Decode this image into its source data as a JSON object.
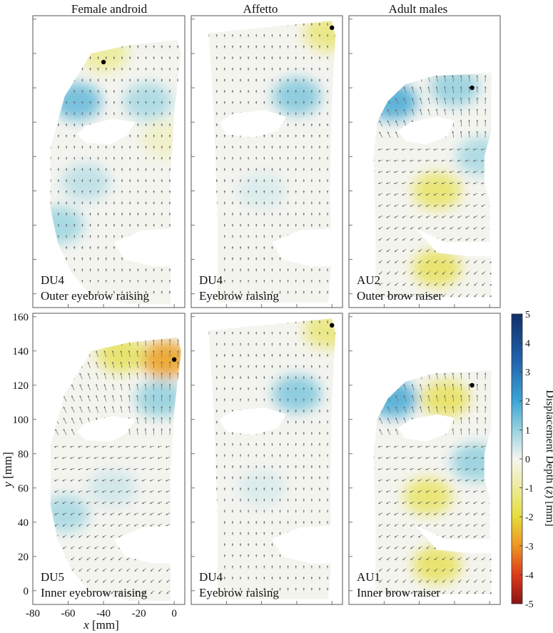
{
  "chart_data": {
    "type": "heatmap",
    "column_titles": [
      "Female android",
      "Affetto",
      "Adult males"
    ],
    "x_axis": {
      "label_italic": "x",
      "label_unit": "[mm]",
      "ticks": [
        -80,
        -60,
        -40,
        -20,
        0
      ],
      "tick_labels": [
        "-80",
        "-60",
        "-40",
        "-20",
        "0"
      ],
      "range": [
        -80,
        6
      ]
    },
    "y_axis": {
      "label_italic": "y",
      "label_unit": "[mm]",
      "ticks": [
        0,
        20,
        40,
        60,
        80,
        100,
        120,
        140,
        160
      ],
      "tick_labels": [
        "0",
        "20",
        "40",
        "60",
        "80",
        "100",
        "120",
        "140",
        "160"
      ],
      "range": [
        -8,
        162
      ]
    },
    "colorbar": {
      "label_parts": [
        "Displacement Depth (",
        "z",
        ") [mm]"
      ],
      "range": [
        -5,
        5
      ],
      "ticks": [
        5,
        4,
        3,
        2,
        1,
        0,
        -1,
        -2,
        -3,
        -4,
        -5
      ],
      "tick_labels": [
        "5",
        "4",
        "3",
        "2",
        "1",
        "0",
        "-1",
        "-2",
        "-3",
        "-4",
        "-5"
      ],
      "colormap": [
        {
          "v": 5,
          "color": "#10306a"
        },
        {
          "v": 3.5,
          "color": "#1f5fa9"
        },
        {
          "v": 2,
          "color": "#3da4d4"
        },
        {
          "v": 1,
          "color": "#96d2df"
        },
        {
          "v": 0,
          "color": "#f5f5f2"
        },
        {
          "v": -1,
          "color": "#ecec9a"
        },
        {
          "v": -2,
          "color": "#e6dc3c"
        },
        {
          "v": -3,
          "color": "#ee9524"
        },
        {
          "v": -4,
          "color": "#dc3a1b"
        },
        {
          "v": -5,
          "color": "#8a1414"
        }
      ]
    },
    "panels": [
      {
        "subject": "Female android",
        "code": "DU4",
        "description": "Outer eyebrow raising",
        "marker": {
          "x": -40,
          "y": 135
        },
        "regions": [
          {
            "x": -40,
            "y": 140,
            "depth": -1.0
          },
          {
            "x": -55,
            "y": 112,
            "depth": 1.5
          },
          {
            "x": -15,
            "y": 112,
            "depth": 0.8
          },
          {
            "x": -50,
            "y": 65,
            "depth": 0.6
          },
          {
            "x": -65,
            "y": 40,
            "depth": 0.9
          },
          {
            "x": -5,
            "y": 90,
            "depth": -0.5
          }
        ]
      },
      {
        "subject": "Affetto",
        "code": "DU4",
        "description": "Eyebrow raising",
        "marker": {
          "x": 0,
          "y": 155
        },
        "regions": [
          {
            "x": -2,
            "y": 152,
            "depth": -1.3
          },
          {
            "x": -20,
            "y": 115,
            "depth": 1.2
          },
          {
            "x": -40,
            "y": 60,
            "depth": 0.3
          }
        ]
      },
      {
        "subject": "Adult males",
        "code": "AU2",
        "description": "Outer brow raiser",
        "marker": {
          "x": -10,
          "y": 120
        },
        "regions": [
          {
            "x": -55,
            "y": 112,
            "depth": 1.8
          },
          {
            "x": -20,
            "y": 120,
            "depth": 1.0
          },
          {
            "x": -30,
            "y": 60,
            "depth": -1.5
          },
          {
            "x": -30,
            "y": 15,
            "depth": -1.6
          },
          {
            "x": -5,
            "y": 80,
            "depth": 0.8
          }
        ]
      },
      {
        "subject": "Female android",
        "code": "DU5",
        "description": "Inner eyebrow raising",
        "marker": {
          "x": 0,
          "y": 135
        },
        "regions": [
          {
            "x": -5,
            "y": 135,
            "depth": -2.8
          },
          {
            "x": -30,
            "y": 138,
            "depth": -1.6
          },
          {
            "x": -8,
            "y": 112,
            "depth": 1.0
          },
          {
            "x": -62,
            "y": 45,
            "depth": 0.8
          },
          {
            "x": -35,
            "y": 60,
            "depth": 0.4
          }
        ]
      },
      {
        "subject": "Affetto",
        "code": "DU4",
        "description": "Eyebrow raising",
        "marker": {
          "x": 0,
          "y": 155
        },
        "regions": [
          {
            "x": -2,
            "y": 152,
            "depth": -1.3
          },
          {
            "x": -20,
            "y": 115,
            "depth": 1.2
          },
          {
            "x": -40,
            "y": 60,
            "depth": 0.3
          }
        ]
      },
      {
        "subject": "Adult males",
        "code": "AU1",
        "description": "Inner brow raiser",
        "marker": {
          "x": -10,
          "y": 120
        },
        "regions": [
          {
            "x": -55,
            "y": 112,
            "depth": 1.8
          },
          {
            "x": -25,
            "y": 112,
            "depth": -1.6
          },
          {
            "x": -8,
            "y": 75,
            "depth": 1.0
          },
          {
            "x": -35,
            "y": 55,
            "depth": -1.5
          },
          {
            "x": -30,
            "y": 15,
            "depth": -1.6
          }
        ]
      }
    ]
  }
}
